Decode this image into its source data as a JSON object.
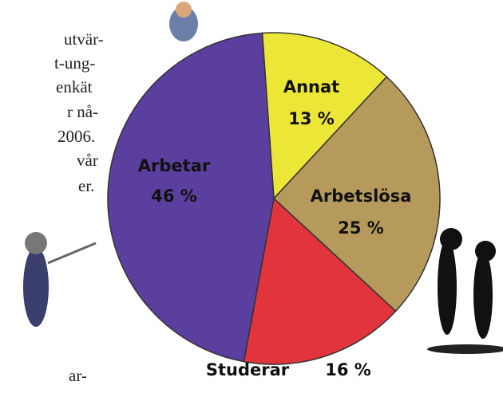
{
  "chart_data": {
    "type": "pie",
    "categories": [
      "Annat",
      "Arbetslösa",
      "Studerar",
      "Arbetar"
    ],
    "values": [
      13,
      25,
      16,
      46
    ],
    "value_labels": [
      "13 %",
      "25 %",
      "16 %",
      "46 %"
    ],
    "colors": [
      "#ece637",
      "#b59a5c",
      "#e1343d",
      "#5b3f9f"
    ]
  },
  "text_fragments": [
    "utvär-",
    "t-ung-",
    "enkät",
    "r nå-",
    "2006.",
    "vår",
    "er.",
    "ar-"
  ]
}
